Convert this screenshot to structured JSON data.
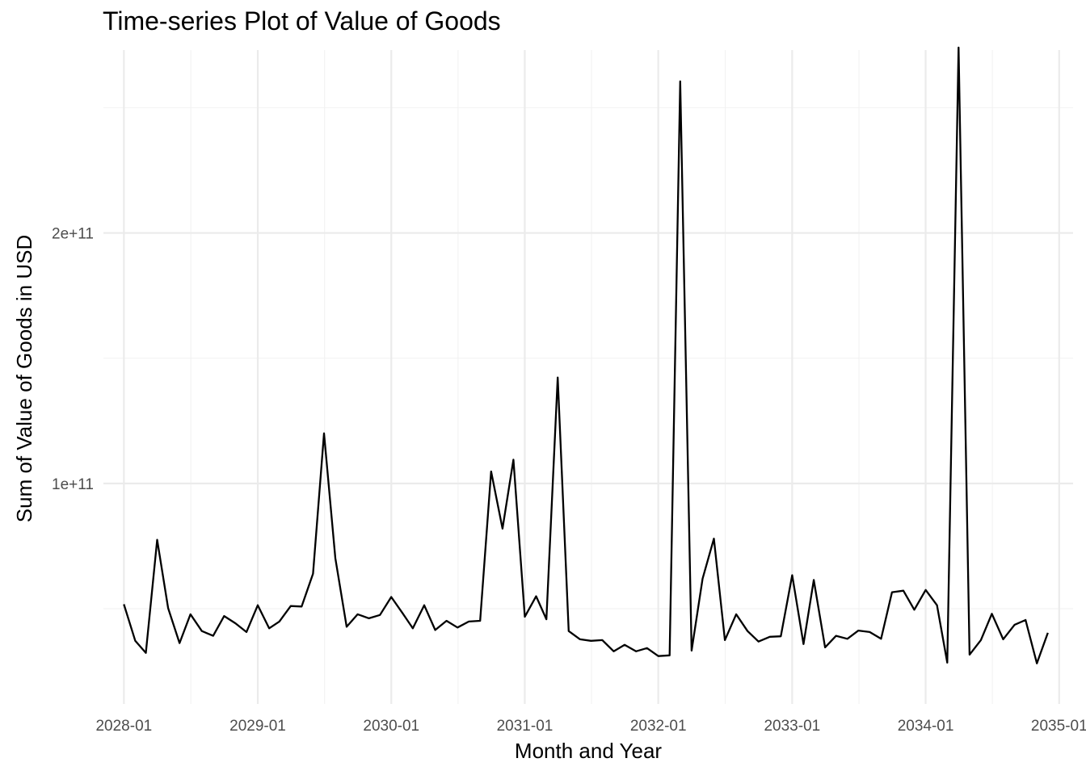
{
  "chart_data": {
    "type": "line",
    "title": "Time-series Plot of Value of Goods",
    "xlabel": "Month and Year",
    "ylabel": "Sum of Value of Goods in USD",
    "x_ticks": [
      "2028-01",
      "2029-01",
      "2030-01",
      "2031-01",
      "2032-01",
      "2033-01",
      "2034-01",
      "2035-01"
    ],
    "y_ticks": [
      {
        "value": 100000000000,
        "label": "1e+11"
      },
      {
        "value": 200000000000,
        "label": "2e+11"
      }
    ],
    "xlim": [
      "2027-11-06",
      "2035-02-08"
    ],
    "ylim": [
      12000000000,
      273000000000
    ],
    "grid": true,
    "line_color": "#000000",
    "series": [
      {
        "x": [
          "2028-01",
          "2028-02",
          "2028-03",
          "2028-04",
          "2028-05",
          "2028-06",
          "2028-07",
          "2028-08",
          "2028-09",
          "2028-10",
          "2028-11",
          "2028-12",
          "2029-01",
          "2029-02",
          "2029-03",
          "2029-04",
          "2029-05",
          "2029-06",
          "2029-07",
          "2029-08",
          "2029-09",
          "2029-10",
          "2029-11",
          "2029-12",
          "2030-01",
          "2030-02",
          "2030-03",
          "2030-04",
          "2030-05",
          "2030-06",
          "2030-07",
          "2030-08",
          "2030-09",
          "2030-10",
          "2030-11",
          "2030-12",
          "2031-01",
          "2031-02",
          "2031-03",
          "2031-04",
          "2031-05",
          "2031-06",
          "2031-07",
          "2031-08",
          "2031-09",
          "2031-10",
          "2031-11",
          "2031-12",
          "2032-01",
          "2032-02",
          "2032-03",
          "2032-04",
          "2032-05",
          "2032-06",
          "2032-07",
          "2032-08",
          "2032-09",
          "2032-10",
          "2032-11",
          "2032-12",
          "2033-01",
          "2033-02",
          "2033-03",
          "2033-04",
          "2033-05",
          "2033-06",
          "2033-07",
          "2033-08",
          "2033-09",
          "2033-10",
          "2033-11",
          "2033-12",
          "2034-01",
          "2034-02",
          "2034-03",
          "2034-04",
          "2034-05",
          "2034-06",
          "2034-07",
          "2034-08",
          "2034-09",
          "2034-10",
          "2034-11",
          "2034-12"
        ],
        "y": [
          51800000000,
          37200000000,
          32400000000,
          77500000000,
          50200000000,
          36300000000,
          47800000000,
          41100000000,
          39200000000,
          47100000000,
          44200000000,
          40700000000,
          51400000000,
          42200000000,
          44900000000,
          51100000000,
          50900000000,
          64000000000,
          120000000000,
          70200000000,
          42800000000,
          47800000000,
          46200000000,
          47500000000,
          54700000000,
          48200000000,
          42200000000,
          51400000000,
          41500000000,
          45200000000,
          42500000000,
          44900000000,
          45200000000,
          104800000000,
          82000000000,
          109500000000,
          46800000000,
          55000000000,
          45800000000,
          142300000000,
          41100000000,
          37800000000,
          37200000000,
          37500000000,
          33000000000,
          35600000000,
          33000000000,
          34300000000,
          31100000000,
          31400000000,
          260500000000,
          33300000000,
          62000000000,
          78000000000,
          37500000000,
          47800000000,
          41100000000,
          36900000000,
          38800000000,
          39000000000,
          63400000000,
          35900000000,
          61500000000,
          34600000000,
          39200000000,
          38000000000,
          41300000000,
          40700000000,
          38000000000,
          56600000000,
          57200000000,
          49600000000,
          57500000000,
          51400000000,
          28500000000,
          274000000000,
          31700000000,
          37500000000,
          48000000000,
          37800000000,
          43600000000,
          45500000000,
          28200000000,
          40400000000
        ]
      }
    ]
  }
}
